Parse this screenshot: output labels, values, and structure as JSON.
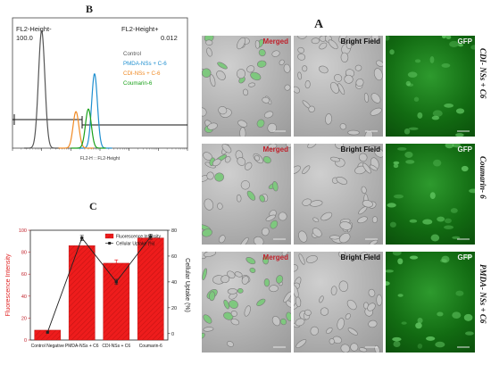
{
  "panels": {
    "a": "A",
    "b": "B",
    "c": "C"
  },
  "flow": {
    "gate_left_label": "FL2-Height-",
    "gate_left_value": "100.0",
    "gate_right_label": "FL2-Height+",
    "gate_right_value": "0.012",
    "legend": [
      {
        "name": "Control",
        "color": "#555555"
      },
      {
        "name": "PMDA-NSs + C-6",
        "color": "#1f8fd0"
      },
      {
        "name": "CDI-NSs + C-6",
        "color": "#f08a24"
      },
      {
        "name": "Coumarin-6",
        "color": "#1aa11a"
      }
    ],
    "xlabel": "FL2-H :: FL2-Height"
  },
  "chart_data": [
    {
      "type": "line",
      "title": "",
      "xlabel": "FL2-H :: FL2-Height",
      "ylabel": "",
      "xscale": "log",
      "series": [
        {
          "name": "Control",
          "peak_x": 10,
          "peak_height": 0.9,
          "color": "#555555"
        },
        {
          "name": "PMDA-NSs + C-6",
          "peak_x": 650,
          "peak_height": 0.57,
          "color": "#1f8fd0"
        },
        {
          "name": "CDI-NSs + C-6",
          "peak_x": 150,
          "peak_height": 0.28,
          "color": "#f08a24"
        },
        {
          "name": "Coumarin-6",
          "peak_x": 400,
          "peak_height": 0.3,
          "color": "#1aa11a"
        }
      ]
    },
    {
      "type": "bar",
      "title": "",
      "categories": [
        "Control Negative",
        "PMDA-NSs + C6",
        "CDI-NSs + C6",
        "Coumarin-6"
      ],
      "series": [
        {
          "name": "Fluorescence Intensity",
          "type": "bar",
          "axis": "left",
          "values": [
            9,
            86,
            70,
            93
          ],
          "errors": [
            0,
            0,
            3,
            0
          ],
          "color": "#ee1c1c"
        },
        {
          "name": "Cellular Uptake (%)",
          "type": "line",
          "axis": "right",
          "values": [
            1,
            74,
            40,
            75
          ],
          "errors": [
            0,
            2,
            2,
            2
          ],
          "color": "#222222"
        }
      ],
      "ylabel_left": "Fluorescence Intensity",
      "ylabel_right": "Cellular Uptake (%)",
      "ylim_left": [
        0,
        100
      ],
      "ylim_right": [
        -5,
        80
      ],
      "yticks_left": [
        0,
        20,
        40,
        60,
        80,
        100
      ],
      "yticks_right": [
        0,
        20,
        40,
        60,
        80
      ],
      "legend_position": "top-right"
    }
  ],
  "microscopy": {
    "columns": [
      "Merged",
      "Bright Field",
      "GFP"
    ],
    "rows": [
      "CDI- NSs + C6",
      "Coumarin- 6",
      "PMDA- NSs + C6"
    ]
  }
}
